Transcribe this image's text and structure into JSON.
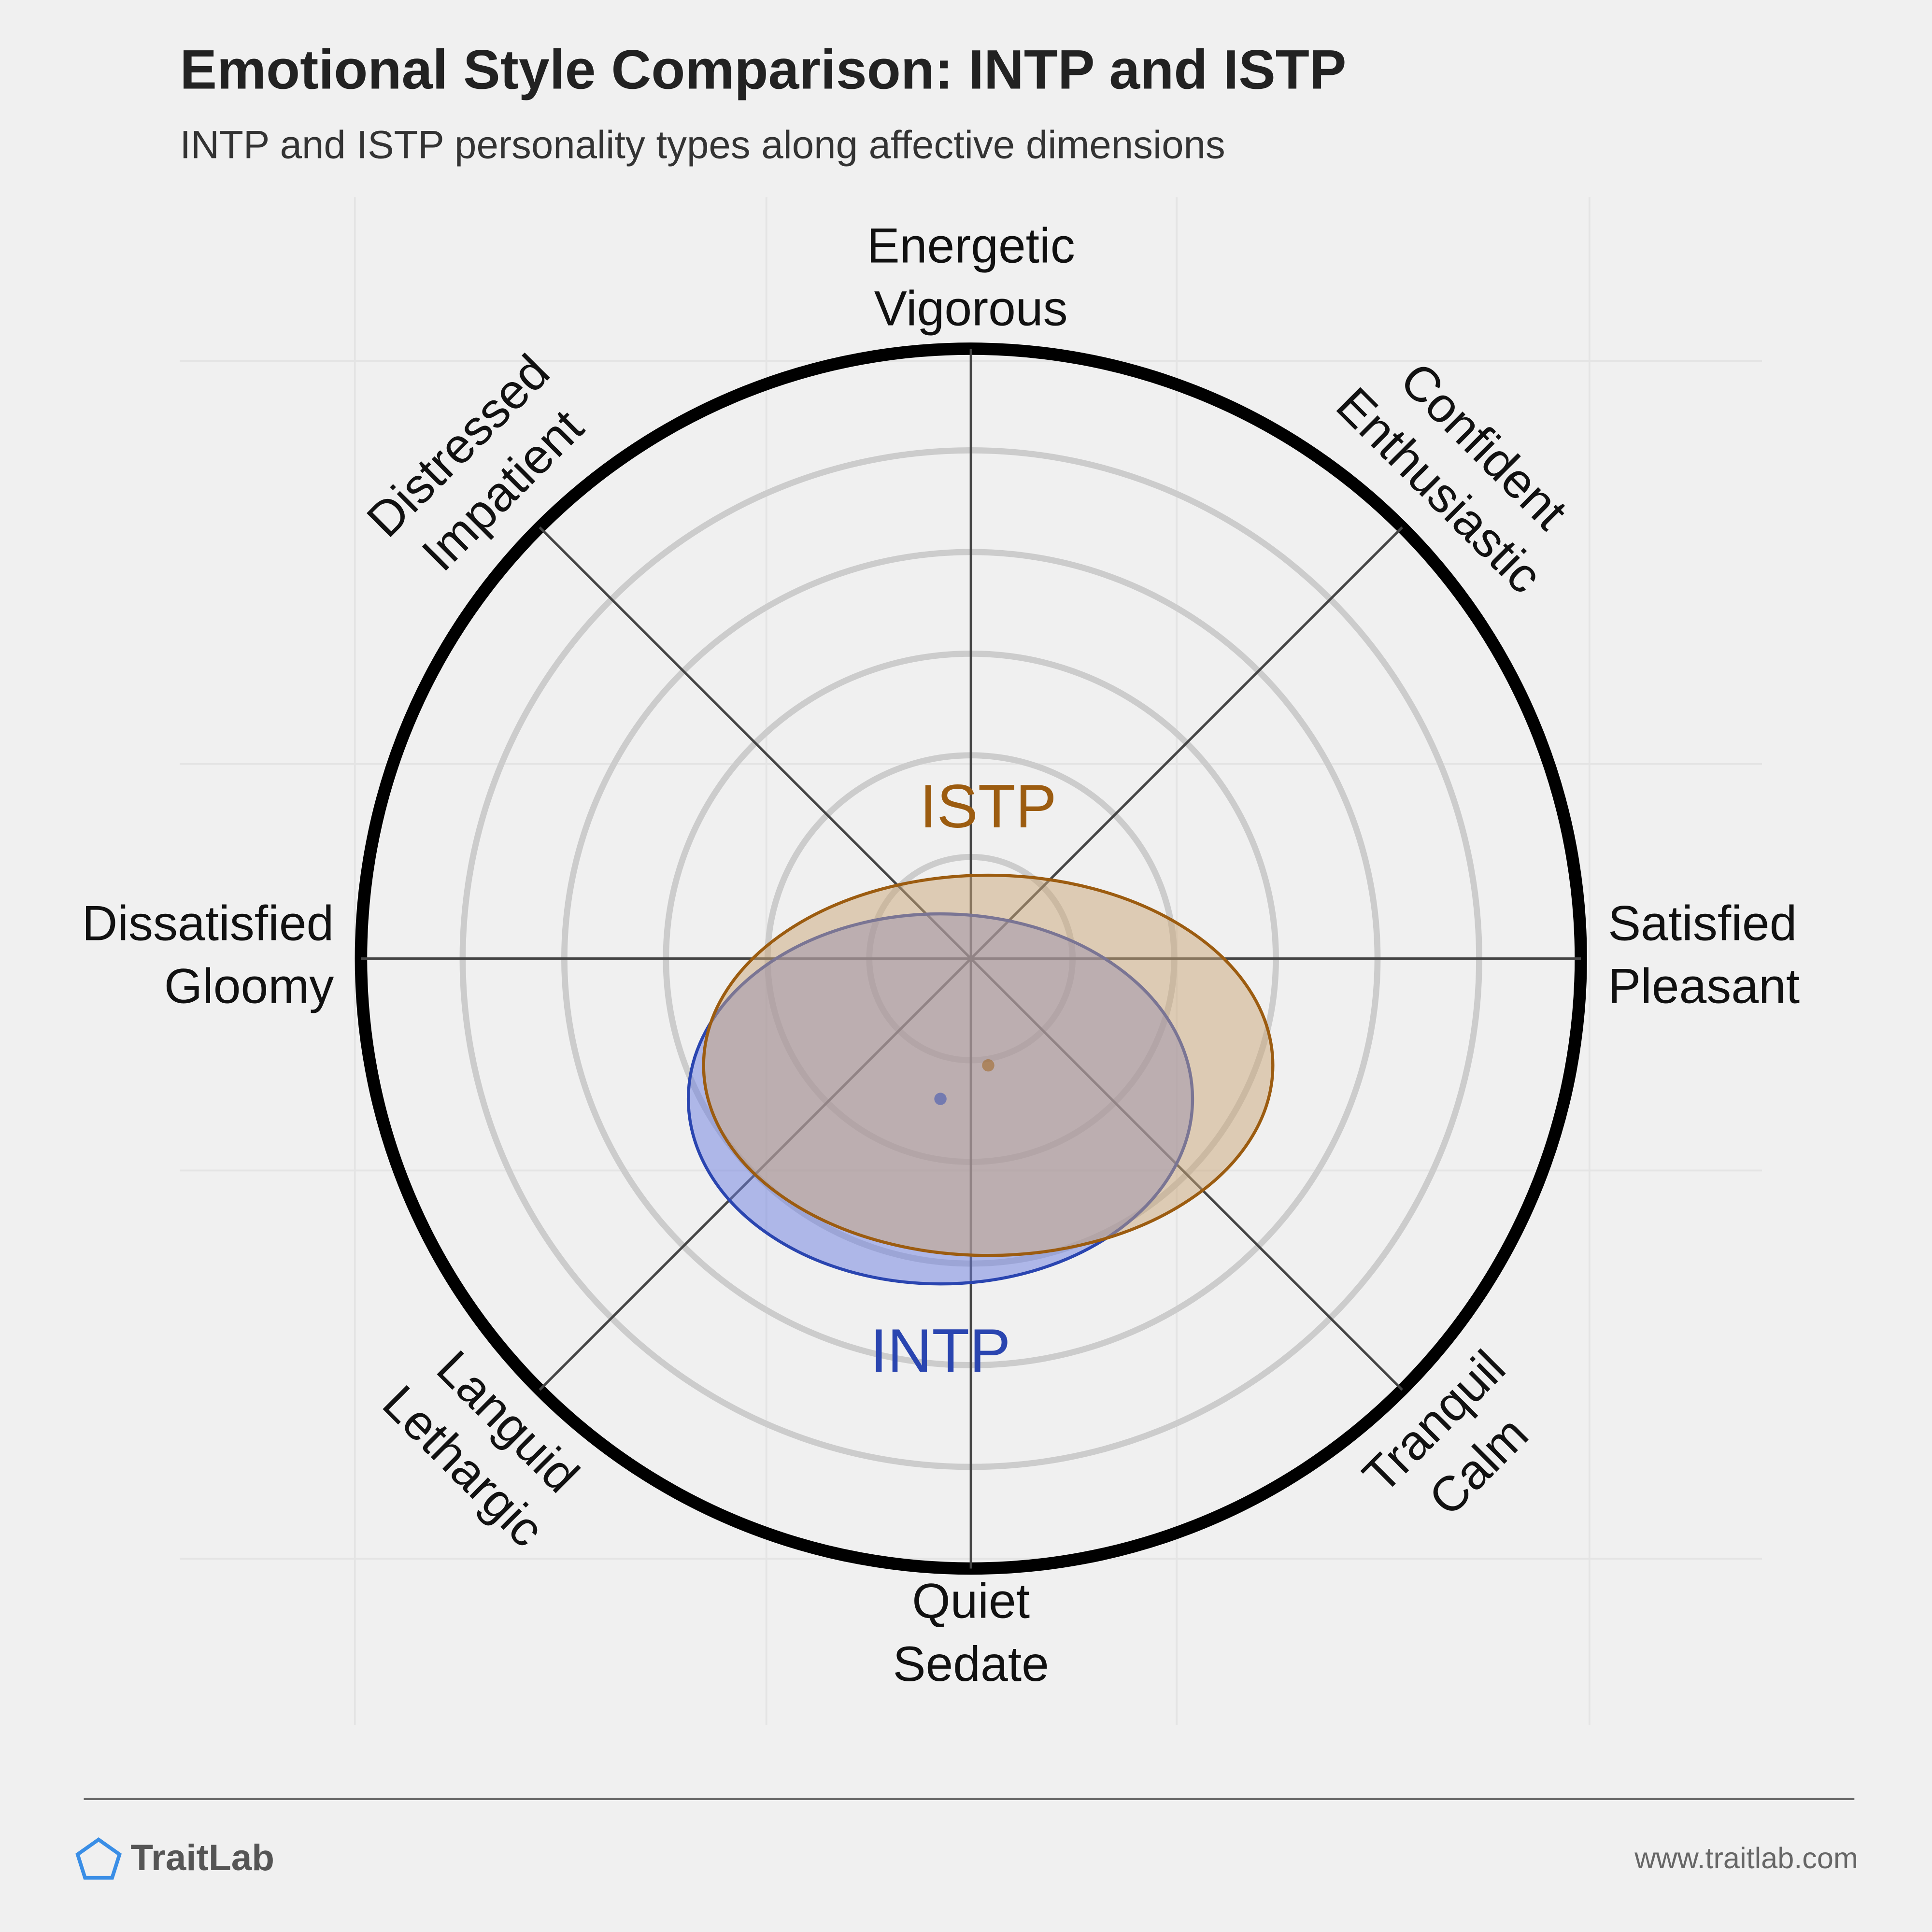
{
  "chart_data": {
    "type": "ellipse",
    "title": "Emotional Style Comparison: INTP and ISTP",
    "subtitle": "INTP and ISTP personality types along affective dimensions",
    "axis_labels": [
      [
        "Energetic",
        "Vigorous"
      ],
      [
        "Confident",
        "Enthusiastic"
      ],
      [
        "Satisfied",
        "Pleasant"
      ],
      [
        "Tranquil",
        "Calm"
      ],
      [
        "Quiet",
        "Sedate"
      ],
      [
        "Languid",
        "Lethargic"
      ],
      [
        "Dissatisfied",
        "Gloomy"
      ],
      [
        "Distressed",
        "Impatient"
      ]
    ],
    "xlim": [
      -6,
      6
    ],
    "ylim": [
      -6,
      6
    ],
    "rticks": [
      1,
      2,
      3,
      4,
      5,
      6
    ],
    "series": [
      {
        "name": "INTP",
        "color": "#2a45b0",
        "fill": "#6b7ee0",
        "x": -0.3,
        "y": -1.38,
        "rx": 2.48,
        "ry": 1.82
      },
      {
        "name": "ISTP",
        "color": "#9c5c10",
        "fill": "#c9a678",
        "x": 0.17,
        "y": -1.05,
        "rx": 2.8,
        "ry": 1.87
      }
    ],
    "brand": "TraitLab",
    "url": "www.traitlab.com"
  }
}
